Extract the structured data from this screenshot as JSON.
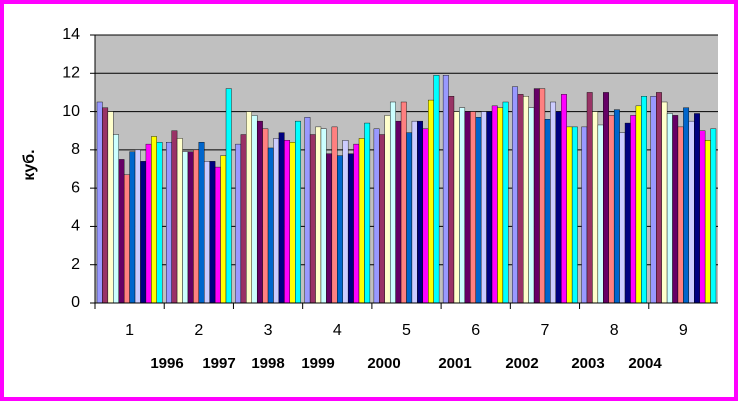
{
  "chart_data": {
    "type": "bar",
    "y_label": "куб.",
    "categories": [
      "1",
      "2",
      "3",
      "4",
      "5",
      "6",
      "7",
      "8",
      "9"
    ],
    "annotations": [
      "1996",
      "1997",
      "1998",
      "1999",
      "2000",
      "2001",
      "2002",
      "2003",
      "2004"
    ],
    "ylim": [
      0,
      14
    ],
    "yticks": [
      0,
      2,
      4,
      6,
      8,
      10,
      12,
      14
    ],
    "grid": true,
    "series": [
      {
        "color": "#9999FF",
        "values": [
          10.5,
          8.4,
          8.3,
          9.7,
          9.1,
          11.9,
          11.3,
          9.2,
          10.8
        ]
      },
      {
        "color": "#993366",
        "values": [
          10.2,
          9.0,
          8.8,
          8.8,
          8.8,
          10.8,
          10.9,
          11.0,
          11.0
        ]
      },
      {
        "color": "#FFFFCC",
        "values": [
          10.0,
          8.6,
          10.0,
          9.2,
          9.8,
          10.0,
          10.8,
          10.0,
          10.5
        ]
      },
      {
        "color": "#CCFFFF",
        "values": [
          8.8,
          7.9,
          9.8,
          9.1,
          10.5,
          10.2,
          10.2,
          9.3,
          9.9
        ]
      },
      {
        "color": "#660066",
        "values": [
          7.5,
          7.9,
          9.5,
          7.8,
          9.5,
          10.0,
          11.2,
          11.0,
          9.8
        ]
      },
      {
        "color": "#FF8080",
        "values": [
          6.7,
          8.0,
          9.1,
          9.2,
          10.5,
          10.0,
          11.2,
          9.8,
          9.2
        ]
      },
      {
        "color": "#0066CC",
        "values": [
          7.9,
          8.4,
          8.1,
          7.7,
          8.9,
          9.7,
          9.6,
          10.1,
          10.2
        ]
      },
      {
        "color": "#CCCCFF",
        "values": [
          8.0,
          7.4,
          8.6,
          8.5,
          9.5,
          10.0,
          10.5,
          8.9,
          9.5
        ]
      },
      {
        "color": "#000080",
        "values": [
          7.4,
          7.4,
          8.9,
          7.8,
          9.5,
          10.0,
          10.0,
          9.4,
          9.9
        ]
      },
      {
        "color": "#FF00FF",
        "values": [
          8.3,
          7.1,
          8.5,
          8.3,
          9.1,
          10.3,
          10.9,
          9.8,
          9.0
        ]
      },
      {
        "color": "#FFFF00",
        "values": [
          8.7,
          7.7,
          8.4,
          8.6,
          10.6,
          10.2,
          9.2,
          10.3,
          8.5
        ]
      },
      {
        "color": "#00FFFF",
        "values": [
          8.4,
          11.2,
          9.5,
          9.4,
          11.9,
          10.5,
          9.2,
          10.8,
          9.1
        ]
      }
    ]
  }
}
